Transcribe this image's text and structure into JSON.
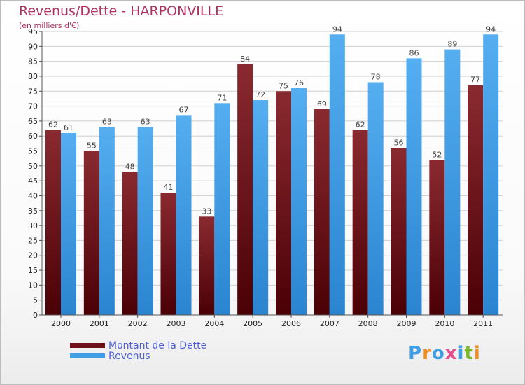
{
  "chart_data": {
    "type": "bar",
    "title": "Revenus/Dette - HARPONVILLE",
    "subtitle": "(en milliers d'€)",
    "categories": [
      "2000",
      "2001",
      "2002",
      "2003",
      "2004",
      "2005",
      "2006",
      "2007",
      "2008",
      "2009",
      "2010",
      "2011"
    ],
    "series": [
      {
        "name": "Montant de la Dette",
        "color": "#6e1018",
        "values": [
          62,
          55,
          48,
          41,
          33,
          84,
          75,
          69,
          62,
          56,
          52,
          77
        ]
      },
      {
        "name": "Revenus",
        "color": "#3f9fe6",
        "values": [
          61,
          63,
          63,
          67,
          71,
          72,
          76,
          94,
          78,
          86,
          89,
          94
        ]
      }
    ],
    "ylim": [
      0,
      95
    ],
    "ytick_step": 5,
    "grid": true,
    "legend_position": "bottom-left"
  },
  "logo": {
    "text": "Proxiti",
    "letter_colors": [
      "#3f9fe6",
      "#f28c1e",
      "#3f9fe6",
      "#e94b8a",
      "#3f9fe6",
      "#79b829",
      "#f28c1e"
    ]
  }
}
